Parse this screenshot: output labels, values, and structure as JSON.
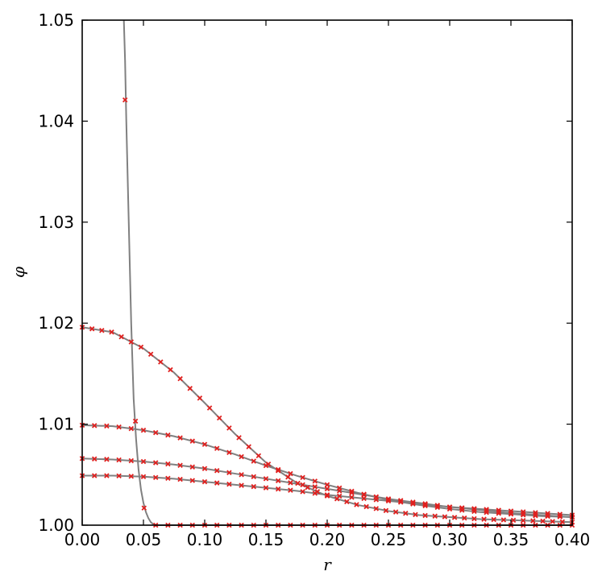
{
  "chart_data": {
    "type": "line",
    "xlabel": "r",
    "ylabel": "φ",
    "xlim": [
      0.0,
      0.4
    ],
    "ylim": [
      1.0,
      1.05
    ],
    "xticks": [
      "0.00",
      "0.05",
      "0.10",
      "0.15",
      "0.20",
      "0.25",
      "0.30",
      "0.35",
      "0.40"
    ],
    "yticks": [
      "1.00",
      "1.01",
      "1.02",
      "1.03",
      "1.04",
      "1.05"
    ],
    "grid": false,
    "line_color": "#808080",
    "marker_color": "#e0201f",
    "series": [
      {
        "x": [
          0.0,
          0.025,
          0.05,
          0.075,
          0.1,
          0.125,
          0.15,
          0.175,
          0.2,
          0.225,
          0.25,
          0.275,
          0.3,
          0.325,
          0.35,
          0.375,
          0.4
        ],
        "y": [
          1.0196,
          1.0191,
          1.0175,
          1.0151,
          1.0121,
          1.009,
          1.0062,
          1.0042,
          1.0029,
          1.002,
          1.0014,
          1.001,
          1.0008,
          1.0006,
          1.0005,
          1.0004,
          1.0003
        ],
        "markers_x": [
          0.0,
          0.008,
          0.016,
          0.024,
          0.032,
          0.04,
          0.048,
          0.056,
          0.064,
          0.072,
          0.08,
          0.088,
          0.096,
          0.104,
          0.112,
          0.12,
          0.128,
          0.136,
          0.144,
          0.152,
          0.16,
          0.168,
          0.176,
          0.184,
          0.192,
          0.2,
          0.208,
          0.216,
          0.224,
          0.232,
          0.24,
          0.248,
          0.256,
          0.264,
          0.272,
          0.28,
          0.288,
          0.296,
          0.304,
          0.312,
          0.32,
          0.328,
          0.336,
          0.344,
          0.352,
          0.36,
          0.368,
          0.376,
          0.384,
          0.392,
          0.4
        ]
      },
      {
        "x": [
          0.0,
          0.025,
          0.05,
          0.075,
          0.1,
          0.125,
          0.15,
          0.175,
          0.2,
          0.225,
          0.25,
          0.275,
          0.3,
          0.325,
          0.35,
          0.375,
          0.4
        ],
        "y": [
          1.0099,
          1.0098,
          1.0094,
          1.0088,
          1.008,
          1.007,
          1.0059,
          1.0049,
          1.004,
          1.0032,
          1.0025,
          1.002,
          1.0016,
          1.0013,
          1.0011,
          1.0009,
          1.0008
        ],
        "markers_x": [
          0.0,
          0.01,
          0.02,
          0.03,
          0.04,
          0.05,
          0.06,
          0.07,
          0.08,
          0.09,
          0.1,
          0.11,
          0.12,
          0.13,
          0.14,
          0.15,
          0.16,
          0.17,
          0.18,
          0.19,
          0.2,
          0.21,
          0.22,
          0.23,
          0.24,
          0.25,
          0.26,
          0.27,
          0.28,
          0.29,
          0.3,
          0.31,
          0.32,
          0.33,
          0.34,
          0.35,
          0.36,
          0.37,
          0.38,
          0.39,
          0.4
        ]
      },
      {
        "x": [
          0.0,
          0.025,
          0.05,
          0.075,
          0.1,
          0.125,
          0.15,
          0.175,
          0.2,
          0.225,
          0.25,
          0.275,
          0.3,
          0.325,
          0.35,
          0.375,
          0.4
        ],
        "y": [
          1.0066,
          1.0065,
          1.0063,
          1.006,
          1.0056,
          1.0051,
          1.0046,
          1.0041,
          1.0036,
          1.0031,
          1.0026,
          1.0022,
          1.0018,
          1.0015,
          1.0012,
          1.001,
          1.0008
        ],
        "markers_x": [
          0.0,
          0.01,
          0.02,
          0.03,
          0.04,
          0.05,
          0.06,
          0.07,
          0.08,
          0.09,
          0.1,
          0.11,
          0.12,
          0.13,
          0.14,
          0.15,
          0.16,
          0.17,
          0.18,
          0.19,
          0.2,
          0.21,
          0.22,
          0.23,
          0.24,
          0.25,
          0.26,
          0.27,
          0.28,
          0.29,
          0.3,
          0.31,
          0.32,
          0.33,
          0.34,
          0.35,
          0.36,
          0.37,
          0.38,
          0.39,
          0.4
        ]
      },
      {
        "x": [
          0.0,
          0.025,
          0.05,
          0.075,
          0.1,
          0.125,
          0.15,
          0.175,
          0.2,
          0.225,
          0.25,
          0.275,
          0.3,
          0.325,
          0.35,
          0.375,
          0.4
        ],
        "y": [
          1.0049,
          1.0049,
          1.0048,
          1.0046,
          1.0043,
          1.004,
          1.0037,
          1.0034,
          1.003,
          1.0027,
          1.0024,
          1.0021,
          1.0018,
          1.0016,
          1.0014,
          1.0012,
          1.001
        ],
        "markers_x": [
          0.0,
          0.01,
          0.02,
          0.03,
          0.04,
          0.05,
          0.06,
          0.07,
          0.08,
          0.09,
          0.1,
          0.11,
          0.12,
          0.13,
          0.14,
          0.15,
          0.16,
          0.17,
          0.18,
          0.19,
          0.2,
          0.21,
          0.22,
          0.23,
          0.24,
          0.25,
          0.26,
          0.27,
          0.28,
          0.29,
          0.3,
          0.31,
          0.32,
          0.33,
          0.34,
          0.35,
          0.36,
          0.37,
          0.38,
          0.39,
          0.4
        ]
      },
      {
        "x": [
          0.034,
          0.035,
          0.036,
          0.038,
          0.04,
          0.042,
          0.044,
          0.046,
          0.048,
          0.05,
          0.052,
          0.054,
          0.056,
          0.058,
          0.06,
          0.065,
          0.07,
          0.1,
          0.15,
          0.2,
          0.25,
          0.3,
          0.35,
          0.4
        ],
        "y": [
          1.05,
          1.046,
          1.04,
          1.03,
          1.02,
          1.0125,
          1.0085,
          1.0055,
          1.0035,
          1.0022,
          1.0013,
          1.0007,
          1.0003,
          1.0001,
          1.0,
          1.0,
          1.0,
          1.0,
          1.0,
          1.0,
          1.0,
          1.0,
          1.0,
          1.0
        ],
        "markers": [
          [
            0.035,
            1.0421
          ],
          [
            0.0435,
            1.0103
          ],
          [
            0.0505,
            1.0017
          ],
          [
            0.06,
            1.0
          ],
          [
            0.07,
            1.0
          ],
          [
            0.08,
            1.0
          ],
          [
            0.09,
            1.0
          ],
          [
            0.1,
            1.0
          ],
          [
            0.11,
            1.0
          ],
          [
            0.12,
            1.0
          ],
          [
            0.13,
            1.0
          ],
          [
            0.14,
            1.0
          ],
          [
            0.15,
            1.0
          ],
          [
            0.16,
            1.0
          ],
          [
            0.17,
            1.0
          ],
          [
            0.18,
            1.0
          ],
          [
            0.19,
            1.0
          ],
          [
            0.2,
            1.0
          ],
          [
            0.21,
            1.0
          ],
          [
            0.22,
            1.0
          ],
          [
            0.23,
            1.0
          ],
          [
            0.24,
            1.0
          ],
          [
            0.25,
            1.0
          ],
          [
            0.26,
            1.0
          ],
          [
            0.27,
            1.0
          ],
          [
            0.28,
            1.0
          ],
          [
            0.29,
            1.0
          ],
          [
            0.3,
            1.0
          ],
          [
            0.31,
            1.0
          ],
          [
            0.32,
            1.0
          ],
          [
            0.33,
            1.0
          ],
          [
            0.34,
            1.0
          ],
          [
            0.35,
            1.0
          ],
          [
            0.36,
            1.0
          ],
          [
            0.37,
            1.0
          ],
          [
            0.38,
            1.0
          ],
          [
            0.39,
            1.0
          ],
          [
            0.4,
            1.0
          ]
        ]
      }
    ]
  }
}
